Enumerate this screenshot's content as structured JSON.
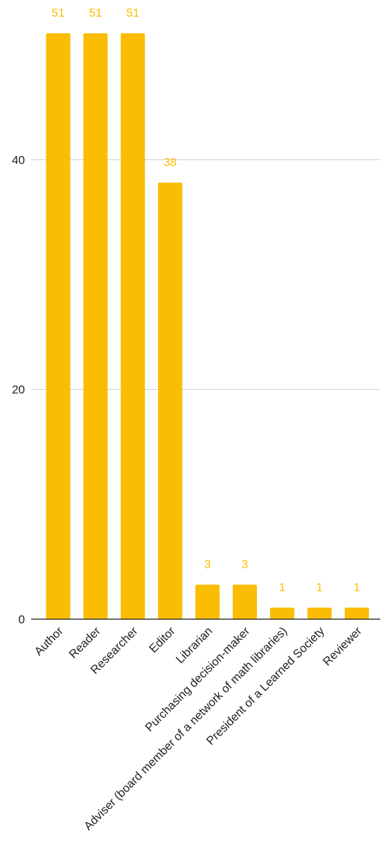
{
  "chart_data": {
    "type": "bar",
    "title": "",
    "xlabel": "",
    "ylabel": "",
    "categories": [
      "Author",
      "Reader",
      "Researcher",
      "Editor",
      "Librarian",
      "Purchasing decision-maker",
      "Adviser (board member of a network of math libraries)",
      "President of a Learned Society",
      "Reviewer"
    ],
    "values": [
      51,
      51,
      51,
      38,
      3,
      3,
      1,
      1,
      1
    ],
    "data_labels": [
      "51",
      "51",
      "51",
      "38",
      "3",
      "3",
      "1",
      "1",
      "1"
    ],
    "ylim": [
      0,
      51
    ],
    "yticks": [
      0,
      20,
      40
    ],
    "ytick_labels": [
      "0",
      "20",
      "40"
    ],
    "grid": true,
    "legend": "none",
    "bar_color": "#FBBC04",
    "label_color": "#FBBC04"
  }
}
